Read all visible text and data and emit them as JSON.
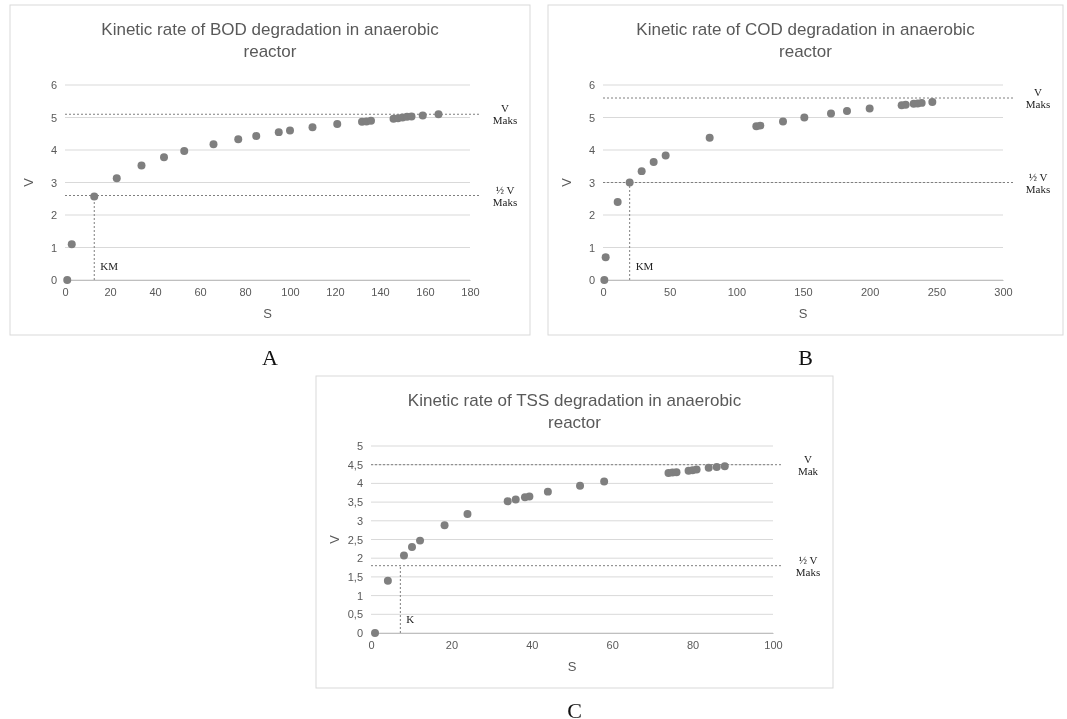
{
  "chart_data": [
    {
      "type": "scatter",
      "title": "Kinetic rate of BOD degradation in anaerobic reactor",
      "xlabel": "S",
      "ylabel": "V",
      "xlim": [
        0,
        180
      ],
      "xticks": [
        0,
        20,
        40,
        60,
        80,
        100,
        120,
        140,
        160,
        180
      ],
      "ylim": [
        0,
        6
      ],
      "yticks": [
        0,
        1,
        2,
        3,
        4,
        5,
        6
      ],
      "grid": "y",
      "marker": "circle",
      "series": [
        {
          "color": "#7f7f7f",
          "x": [
            1,
            3,
            13,
            23,
            34,
            44,
            53,
            66,
            77,
            85,
            95,
            100,
            110,
            121,
            132,
            134,
            136,
            146,
            148,
            150,
            152,
            154,
            159,
            166
          ],
          "values": [
            0,
            1.1,
            2.57,
            3.13,
            3.52,
            3.78,
            3.97,
            4.18,
            4.33,
            4.43,
            4.55,
            4.6,
            4.7,
            4.8,
            4.87,
            4.88,
            4.9,
            4.96,
            4.98,
            5.0,
            5.02,
            5.03,
            5.06,
            5.1
          ]
        }
      ],
      "ref_lines": [
        {
          "axis": "y",
          "value": 5.1,
          "label": "V Maks"
        },
        {
          "axis": "y",
          "value": 2.6,
          "label": "½ V Maks"
        },
        {
          "axis": "x",
          "value": 13,
          "label": "KM"
        }
      ],
      "annotations": [
        "A"
      ]
    },
    {
      "type": "scatter",
      "title": "Kinetic rate of COD degradation in anaerobic reactor",
      "xlabel": "S",
      "ylabel": "V",
      "xlim": [
        0,
        300
      ],
      "xticks": [
        0,
        50,
        100,
        150,
        200,
        250,
        300
      ],
      "ylim": [
        0,
        6
      ],
      "yticks": [
        0,
        1,
        2,
        3,
        4,
        5,
        6
      ],
      "grid": "y",
      "marker": "circle",
      "series": [
        {
          "color": "#7f7f7f",
          "x": [
            1,
            2,
            11,
            20,
            29,
            38,
            47,
            80,
            115,
            118,
            135,
            151,
            171,
            183,
            200,
            224,
            227,
            233,
            236,
            239,
            247
          ],
          "values": [
            0,
            0.7,
            2.4,
            3.0,
            3.35,
            3.63,
            3.83,
            4.38,
            4.73,
            4.75,
            4.88,
            5.0,
            5.12,
            5.2,
            5.28,
            5.38,
            5.39,
            5.42,
            5.43,
            5.45,
            5.48
          ]
        }
      ],
      "ref_lines": [
        {
          "axis": "y",
          "value": 5.6,
          "label": "V Maks"
        },
        {
          "axis": "y",
          "value": 3,
          "label": "½ V Maks"
        },
        {
          "axis": "x",
          "value": 20,
          "label": "KM"
        }
      ],
      "annotations": [
        "B"
      ]
    },
    {
      "type": "scatter",
      "title": "Kinetic rate of TSS degradation in anaerobic reactor",
      "xlabel": "S",
      "ylabel": "V",
      "xlim": [
        0,
        100
      ],
      "xticks": [
        0,
        20,
        40,
        60,
        80,
        100
      ],
      "ylim": [
        0,
        5
      ],
      "yticks": [
        0,
        {
          "value": 0.5,
          "label": "0,5"
        },
        1,
        {
          "value": 1.5,
          "label": "1,5"
        },
        2,
        {
          "value": 2.5,
          "label": "2,5"
        },
        3,
        {
          "value": 3.5,
          "label": "3,5"
        },
        4,
        {
          "value": 4.5,
          "label": "4,5"
        },
        5
      ],
      "grid": "y",
      "marker": "circle",
      "series": [
        {
          "color": "#7f7f7f",
          "x": [
            1,
            4.2,
            8.2,
            10.2,
            12.2,
            18.3,
            24,
            34,
            36,
            38.3,
            39.4,
            44,
            52,
            58,
            74,
            75,
            76,
            79,
            80,
            81,
            84,
            86,
            88
          ],
          "values": [
            0,
            1.4,
            2.07,
            2.3,
            2.47,
            2.88,
            3.18,
            3.52,
            3.57,
            3.63,
            3.65,
            3.78,
            3.94,
            4.05,
            4.28,
            4.29,
            4.3,
            4.34,
            4.35,
            4.37,
            4.42,
            4.44,
            4.46
          ]
        }
      ],
      "ref_lines": [
        {
          "axis": "y",
          "value": 4.5,
          "label": "V Mak"
        },
        {
          "axis": "y",
          "value": 1.8,
          "label": "½ V Maks"
        },
        {
          "axis": "x",
          "value": 7.3,
          "label": "K"
        }
      ],
      "annotations": [
        "C"
      ]
    }
  ]
}
